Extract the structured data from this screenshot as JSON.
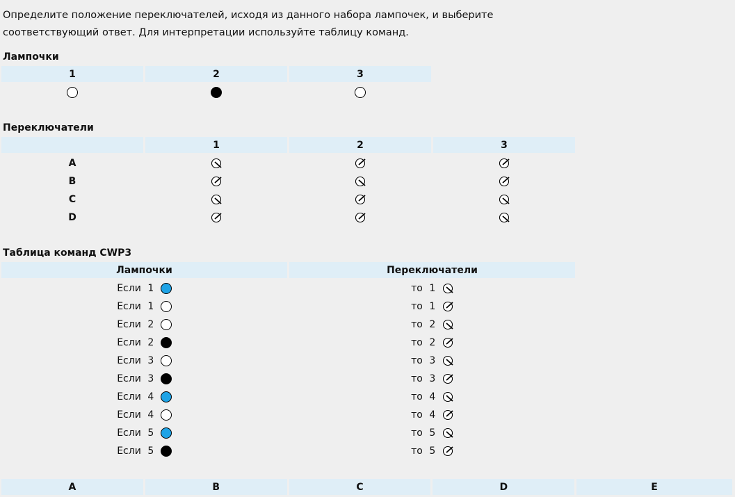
{
  "instruction": [
    "Определите положение переключателей, исходя из данного набора лампочек, и выберите",
    "соответствующий ответ. Для интерпретации используйте таблицу команд."
  ],
  "lamps": {
    "title": "Лампочки",
    "headers": [
      "1",
      "2",
      "3"
    ],
    "states": [
      "off",
      "black",
      "off"
    ]
  },
  "switches": {
    "title": "Переключатели",
    "headers": [
      "",
      "1",
      "2",
      "3"
    ],
    "rows": [
      {
        "label": "A",
        "states": [
          "down",
          "up",
          "up"
        ]
      },
      {
        "label": "B",
        "states": [
          "up",
          "down",
          "up"
        ]
      },
      {
        "label": "C",
        "states": [
          "down",
          "up",
          "down"
        ]
      },
      {
        "label": "D",
        "states": [
          "up",
          "up",
          "down"
        ]
      }
    ]
  },
  "commands": {
    "title": "Таблица команд CWP3",
    "headers": [
      "Лампочки",
      "Переключатели"
    ],
    "if_word": "Если",
    "then_word": "то",
    "rows": [
      {
        "lamp": "1",
        "lamp_state": "blue",
        "switch": "1",
        "switch_state": "down"
      },
      {
        "lamp": "1",
        "lamp_state": "off",
        "switch": "1",
        "switch_state": "up"
      },
      {
        "lamp": "2",
        "lamp_state": "off",
        "switch": "2",
        "switch_state": "down"
      },
      {
        "lamp": "2",
        "lamp_state": "black",
        "switch": "2",
        "switch_state": "up"
      },
      {
        "lamp": "3",
        "lamp_state": "off",
        "switch": "3",
        "switch_state": "down"
      },
      {
        "lamp": "3",
        "lamp_state": "black",
        "switch": "3",
        "switch_state": "up"
      },
      {
        "lamp": "4",
        "lamp_state": "blue",
        "switch": "4",
        "switch_state": "down"
      },
      {
        "lamp": "4",
        "lamp_state": "off",
        "switch": "4",
        "switch_state": "up"
      },
      {
        "lamp": "5",
        "lamp_state": "blue",
        "switch": "5",
        "switch_state": "down"
      },
      {
        "lamp": "5",
        "lamp_state": "black",
        "switch": "5",
        "switch_state": "up"
      }
    ]
  },
  "answers": [
    "A",
    "B",
    "C",
    "D",
    "E"
  ],
  "colors": {
    "header_bg": "#dfeef7",
    "lamp_blue": "#1ea3e6",
    "lamp_black": "#000000",
    "page_bg": "#efefef"
  }
}
